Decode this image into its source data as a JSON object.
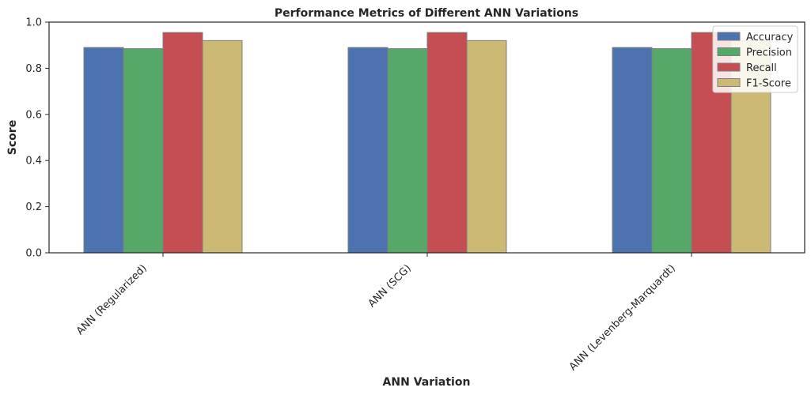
{
  "chart_data": {
    "type": "bar",
    "title": "Performance Metrics of Different ANN Variations",
    "xlabel": "ANN Variation",
    "ylabel": "Score",
    "ylim": [
      0,
      1.0
    ],
    "yticks": [
      "0.0",
      "0.2",
      "0.4",
      "0.6",
      "0.8",
      "1.0"
    ],
    "grid": false,
    "legend_position": "top-right",
    "categories": [
      "ANN (Regularized)",
      "ANN (SCG)",
      "ANN (Levenberg-Marquardt)"
    ],
    "series": [
      {
        "name": "Accuracy",
        "color": "#4c72b0",
        "values": [
          0.89,
          0.89,
          0.89
        ]
      },
      {
        "name": "Precision",
        "color": "#55a868",
        "values": [
          0.885,
          0.885,
          0.885
        ]
      },
      {
        "name": "Recall",
        "color": "#c44e52",
        "values": [
          0.955,
          0.955,
          0.955
        ]
      },
      {
        "name": "F1-Score",
        "color": "#ccb974",
        "values": [
          0.92,
          0.92,
          0.92
        ]
      }
    ]
  }
}
